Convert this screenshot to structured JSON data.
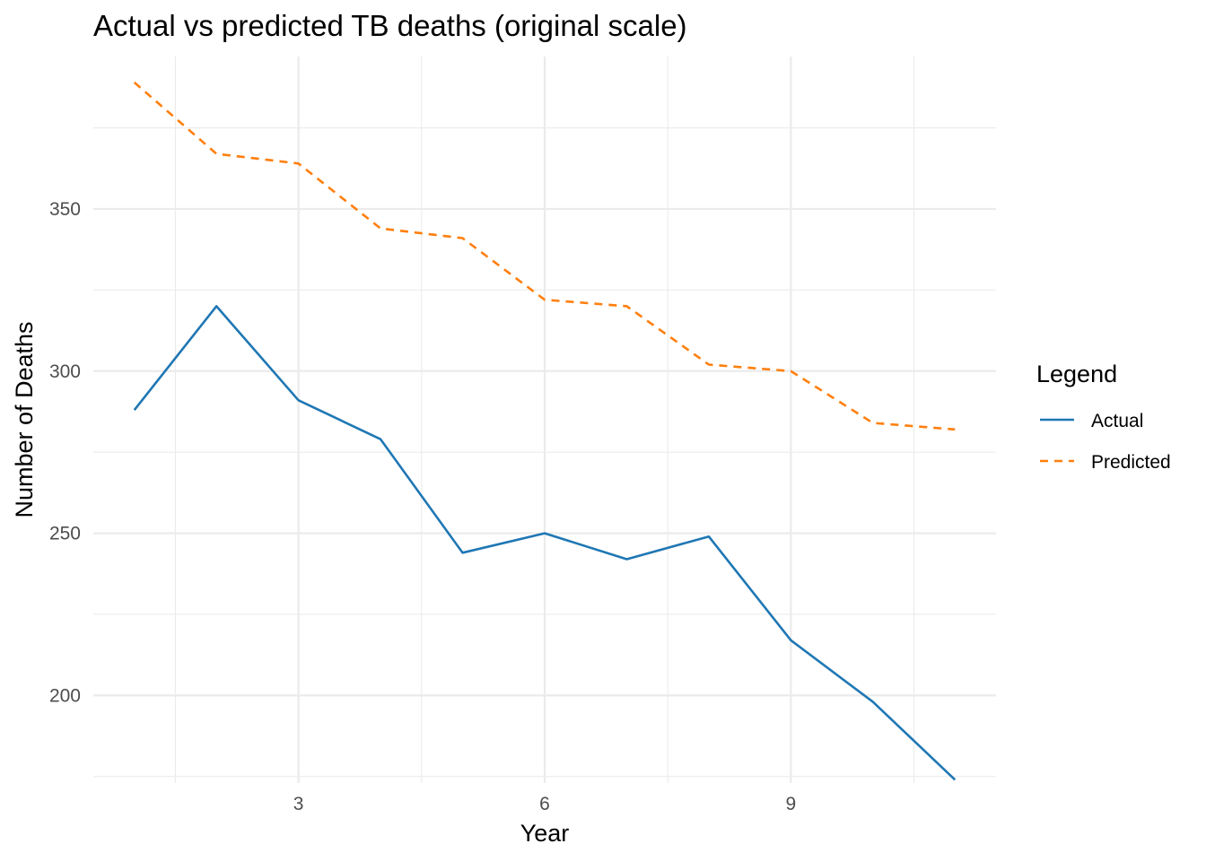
{
  "chart_data": {
    "type": "line",
    "title": "Actual vs predicted TB deaths (original scale)",
    "xlabel": "Year",
    "ylabel": "Number of Deaths",
    "xlim": [
      0.5,
      11.5
    ],
    "ylim": [
      173,
      397
    ],
    "x_ticks": [
      3,
      6,
      9
    ],
    "x_tick_labels": [
      "3",
      "6",
      "9"
    ],
    "x_minor_ticks": [
      1.5,
      4.5,
      7.5,
      10.5
    ],
    "y_ticks": [
      200,
      250,
      300,
      350
    ],
    "y_tick_labels": [
      "200",
      "250",
      "300",
      "350"
    ],
    "y_minor_ticks": [
      175,
      225,
      275,
      325,
      375
    ],
    "grid": true,
    "legend": {
      "title": "Legend",
      "position": "right"
    },
    "x": [
      1,
      2,
      3,
      4,
      5,
      6,
      7,
      8,
      9,
      10,
      11
    ],
    "series": [
      {
        "name": "Actual",
        "values": [
          288,
          320,
          291,
          279,
          244,
          250,
          242,
          249,
          217,
          198,
          174
        ],
        "color": "#1f77b4",
        "dash": "solid"
      },
      {
        "name": "Predicted",
        "values": [
          389,
          367,
          364,
          344,
          341,
          322,
          320,
          302,
          300,
          284,
          282
        ],
        "color": "#ff7f0e",
        "dash": "dashed"
      }
    ]
  }
}
